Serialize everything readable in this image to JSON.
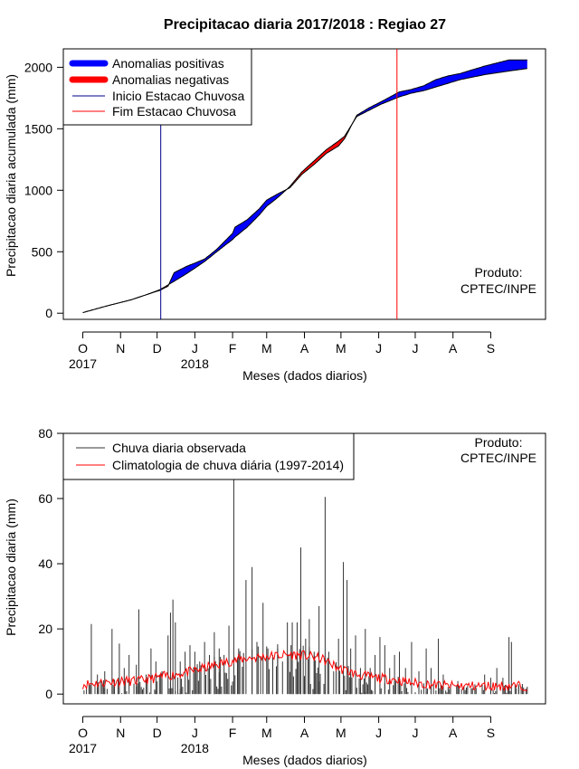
{
  "chart_data": [
    {
      "type": "area",
      "title": "Precipitacao diaria 2017/2018 : Regiao 27",
      "xlabel": "Meses (dados diarios)",
      "ylabel": "Precipitacao diaria acumulada (mm)",
      "ylim": [
        -50,
        2150
      ],
      "y_ticks": [
        0,
        500,
        1000,
        1500,
        2000
      ],
      "x_ticks": [
        {
          "day": 0,
          "label": "O",
          "year": "2017"
        },
        {
          "day": 31,
          "label": "N"
        },
        {
          "day": 61,
          "label": "D"
        },
        {
          "day": 92,
          "label": "J",
          "year": "2018"
        },
        {
          "day": 123,
          "label": "F"
        },
        {
          "day": 151,
          "label": "M"
        },
        {
          "day": 182,
          "label": "A"
        },
        {
          "day": 212,
          "label": "M"
        },
        {
          "day": 243,
          "label": "J"
        },
        {
          "day": 273,
          "label": "J"
        },
        {
          "day": 304,
          "label": "A"
        },
        {
          "day": 335,
          "label": "S"
        }
      ],
      "xlim": [
        -16,
        380
      ],
      "legend": [
        {
          "label": "Anomalias positivas",
          "color": "#0000ff"
        },
        {
          "label": "Anomalias negativas",
          "color": "#ff0000"
        },
        {
          "label": "Inicio Estacao Chuvosa",
          "color": "#00008b"
        },
        {
          "label": "Fim Estacao Chuvosa",
          "color": "#ff0000"
        }
      ],
      "legend_position": "top-left",
      "rainy_season_start_day": 64,
      "rainy_season_end_day": 258,
      "observed_cumulative": {
        "days": [
          0,
          20,
          40,
          55,
          63,
          70,
          75,
          85,
          100,
          110,
          123,
          125,
          135,
          145,
          151,
          160,
          170,
          180,
          190,
          200,
          210,
          215,
          225,
          235,
          245,
          260,
          270,
          280,
          290,
          300,
          310,
          320,
          330,
          350,
          365
        ],
        "values": [
          5,
          60,
          110,
          160,
          185,
          220,
          330,
          380,
          440,
          520,
          650,
          700,
          760,
          850,
          920,
          970,
          1020,
          1130,
          1210,
          1300,
          1360,
          1420,
          1610,
          1670,
          1720,
          1800,
          1820,
          1850,
          1900,
          1930,
          1950,
          1980,
          2010,
          2060,
          2060
        ]
      },
      "climatology_cumulative": {
        "days": [
          0,
          20,
          40,
          55,
          63,
          70,
          75,
          85,
          100,
          110,
          123,
          125,
          135,
          145,
          151,
          160,
          170,
          180,
          190,
          200,
          210,
          215,
          225,
          235,
          245,
          260,
          270,
          280,
          290,
          300,
          310,
          320,
          330,
          350,
          365
        ],
        "values": [
          5,
          60,
          110,
          160,
          190,
          230,
          260,
          320,
          420,
          500,
          600,
          620,
          700,
          800,
          870,
          940,
          1030,
          1150,
          1240,
          1330,
          1400,
          1440,
          1600,
          1650,
          1700,
          1760,
          1790,
          1810,
          1840,
          1870,
          1900,
          1920,
          1940,
          1970,
          1990
        ]
      },
      "annotation": [
        "Produto:",
        "CPTEC/INPE"
      ]
    },
    {
      "type": "bar",
      "title": "",
      "xlabel": "Meses (dados diarios)",
      "ylabel": "Precipitacao diaria (mm)",
      "ylim": [
        -3,
        80
      ],
      "y_ticks": [
        0,
        20,
        40,
        60,
        80
      ],
      "x_ticks": [
        {
          "day": 0,
          "label": "O",
          "year": "2017"
        },
        {
          "day": 31,
          "label": "N"
        },
        {
          "day": 61,
          "label": "D"
        },
        {
          "day": 92,
          "label": "J",
          "year": "2018"
        },
        {
          "day": 123,
          "label": "F"
        },
        {
          "day": 151,
          "label": "M"
        },
        {
          "day": 182,
          "label": "A"
        },
        {
          "day": 212,
          "label": "M"
        },
        {
          "day": 243,
          "label": "J"
        },
        {
          "day": 273,
          "label": "J"
        },
        {
          "day": 304,
          "label": "A"
        },
        {
          "day": 335,
          "label": "S"
        }
      ],
      "xlim": [
        -16,
        380
      ],
      "legend": [
        {
          "label": "Chuva diaria observada",
          "color": "#333333"
        },
        {
          "label": "Climatologia de chuva diária (1997-2014)",
          "color": "#ff0000"
        }
      ],
      "legend_position": "top-left",
      "observed_peaks": [
        {
          "day": 7,
          "value": 21.5
        },
        {
          "day": 12,
          "value": 6
        },
        {
          "day": 18,
          "value": 7
        },
        {
          "day": 24,
          "value": 20
        },
        {
          "day": 29,
          "value": 5
        },
        {
          "day": 30,
          "value": 15.5
        },
        {
          "day": 34,
          "value": 8
        },
        {
          "day": 38,
          "value": 12
        },
        {
          "day": 44,
          "value": 9
        },
        {
          "day": 46,
          "value": 26
        },
        {
          "day": 52,
          "value": 6
        },
        {
          "day": 56,
          "value": 14
        },
        {
          "day": 60,
          "value": 10
        },
        {
          "day": 65,
          "value": 7
        },
        {
          "day": 70,
          "value": 18
        },
        {
          "day": 72,
          "value": 25
        },
        {
          "day": 74,
          "value": 29
        },
        {
          "day": 76,
          "value": 22
        },
        {
          "day": 80,
          "value": 10
        },
        {
          "day": 84,
          "value": 13
        },
        {
          "day": 88,
          "value": 15
        },
        {
          "day": 92,
          "value": 13
        },
        {
          "day": 96,
          "value": 10
        },
        {
          "day": 100,
          "value": 16
        },
        {
          "day": 104,
          "value": 12
        },
        {
          "day": 108,
          "value": 19
        },
        {
          "day": 112,
          "value": 14
        },
        {
          "day": 116,
          "value": 12
        },
        {
          "day": 120,
          "value": 21
        },
        {
          "day": 124,
          "value": 66.5
        },
        {
          "day": 128,
          "value": 14
        },
        {
          "day": 134,
          "value": 35
        },
        {
          "day": 139,
          "value": 39
        },
        {
          "day": 143,
          "value": 16
        },
        {
          "day": 148,
          "value": 28
        },
        {
          "day": 152,
          "value": 14
        },
        {
          "day": 156,
          "value": 12
        },
        {
          "day": 160,
          "value": 14
        },
        {
          "day": 164,
          "value": 10
        },
        {
          "day": 168,
          "value": 22
        },
        {
          "day": 172,
          "value": 22
        },
        {
          "day": 176,
          "value": 22
        },
        {
          "day": 179,
          "value": 45
        },
        {
          "day": 183,
          "value": 17
        },
        {
          "day": 186,
          "value": 23
        },
        {
          "day": 190,
          "value": 13
        },
        {
          "day": 194,
          "value": 27
        },
        {
          "day": 199,
          "value": 60.5
        },
        {
          "day": 202,
          "value": 13
        },
        {
          "day": 206,
          "value": 7
        },
        {
          "day": 210,
          "value": 17
        },
        {
          "day": 214,
          "value": 40.5
        },
        {
          "day": 217,
          "value": 35
        },
        {
          "day": 220,
          "value": 14
        },
        {
          "day": 224,
          "value": 18
        },
        {
          "day": 228,
          "value": 8
        },
        {
          "day": 232,
          "value": 20
        },
        {
          "day": 236,
          "value": 8
        },
        {
          "day": 240,
          "value": 12
        },
        {
          "day": 244,
          "value": 17.5
        },
        {
          "day": 248,
          "value": 15
        },
        {
          "day": 252,
          "value": 8
        },
        {
          "day": 256,
          "value": 12
        },
        {
          "day": 260,
          "value": 13
        },
        {
          "day": 265,
          "value": 8
        },
        {
          "day": 270,
          "value": 16
        },
        {
          "day": 276,
          "value": 7
        },
        {
          "day": 282,
          "value": 14
        },
        {
          "day": 286,
          "value": 8
        },
        {
          "day": 292,
          "value": 17
        },
        {
          "day": 296,
          "value": 6
        },
        {
          "day": 302,
          "value": 3
        },
        {
          "day": 308,
          "value": 4
        },
        {
          "day": 315,
          "value": 2
        },
        {
          "day": 322,
          "value": 3
        },
        {
          "day": 330,
          "value": 6
        },
        {
          "day": 335,
          "value": 5
        },
        {
          "day": 340,
          "value": 8
        },
        {
          "day": 345,
          "value": 5
        },
        {
          "day": 350,
          "value": 17.5
        },
        {
          "day": 352,
          "value": 16
        },
        {
          "day": 358,
          "value": 3
        },
        {
          "day": 362,
          "value": 2
        }
      ],
      "climatology_daily": {
        "days": [
          0,
          15,
          30,
          45,
          60,
          75,
          90,
          105,
          120,
          135,
          150,
          165,
          180,
          195,
          210,
          225,
          240,
          255,
          270,
          285,
          300,
          315,
          330,
          345,
          365
        ],
        "values": [
          3,
          3.5,
          4,
          4,
          5,
          6,
          7,
          8.5,
          10,
          11,
          11.5,
          12,
          12,
          11,
          8,
          6,
          5,
          4.5,
          3.5,
          3,
          2.5,
          2.5,
          2.5,
          2.5,
          2.5
        ]
      },
      "annotation": [
        "Produto:",
        "CPTEC/INPE"
      ]
    }
  ]
}
